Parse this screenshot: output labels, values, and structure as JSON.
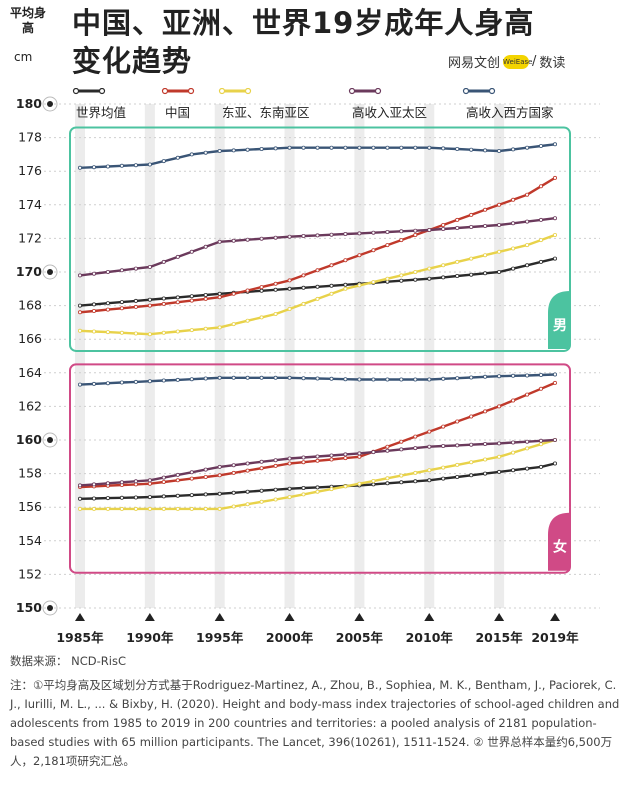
{
  "header": {
    "ylabel": "平均身高",
    "unit": "cm",
    "title_line1": "中国、亚洲、世界19岁成年人身高",
    "title_line2": "变化趋势",
    "brand_left": "网易文创",
    "brand_logo": "WeiEase",
    "brand_right": "数读"
  },
  "chart_data": {
    "type": "line",
    "ylim": [
      150,
      180
    ],
    "yticks": [
      150,
      152,
      154,
      156,
      158,
      160,
      162,
      164,
      166,
      168,
      170,
      172,
      174,
      176,
      178,
      180
    ],
    "x": [
      1985,
      1986,
      1987,
      1988,
      1989,
      1990,
      1991,
      1992,
      1993,
      1994,
      1995,
      1996,
      1997,
      1998,
      1999,
      2000,
      2001,
      2002,
      2003,
      2004,
      2005,
      2006,
      2007,
      2008,
      2009,
      2010,
      2011,
      2012,
      2013,
      2014,
      2015,
      2016,
      2017,
      2018,
      2019
    ],
    "xticks": [
      "1985年",
      "1990年",
      "1995年",
      "2000年",
      "2005年",
      "2010年",
      "2015年",
      "2019年"
    ],
    "panels": [
      {
        "label": "男",
        "series": [
          {
            "name": "世界均值",
            "color": "#2b2b2b",
            "values": [
              168.0,
              168.07,
              168.14,
              168.21,
              168.28,
              168.35,
              168.42,
              168.49,
              168.56,
              168.63,
              168.7,
              168.76,
              168.82,
              168.88,
              168.94,
              169.0,
              169.06,
              169.12,
              169.18,
              169.24,
              169.3,
              169.36,
              169.42,
              169.48,
              169.54,
              169.6,
              169.68,
              169.76,
              169.84,
              169.92,
              170.0,
              170.2,
              170.4,
              170.6,
              170.8
            ]
          },
          {
            "name": "中国",
            "color": "#c0392b",
            "values": [
              167.6,
              167.68,
              167.76,
              167.84,
              167.92,
              168.0,
              168.1,
              168.2,
              168.3,
              168.4,
              168.5,
              168.7,
              168.9,
              169.1,
              169.3,
              169.5,
              169.8,
              170.1,
              170.4,
              170.7,
              171.0,
              171.3,
              171.6,
              171.9,
              172.2,
              172.5,
              172.8,
              173.1,
              173.4,
              173.7,
              174.0,
              174.3,
              174.6,
              175.1,
              175.6
            ]
          },
          {
            "name": "东亚、东南亚区",
            "color": "#e8d24a",
            "values": [
              166.5,
              166.46,
              166.42,
              166.38,
              166.34,
              166.3,
              166.38,
              166.46,
              166.54,
              166.62,
              166.7,
              166.9,
              167.1,
              167.3,
              167.5,
              167.8,
              168.1,
              168.4,
              168.7,
              169.0,
              169.2,
              169.4,
              169.6,
              169.8,
              170.0,
              170.2,
              170.4,
              170.6,
              170.8,
              171.0,
              171.2,
              171.4,
              171.6,
              171.9,
              172.2
            ]
          },
          {
            "name": "高收入亚太区",
            "color": "#6b3a5c",
            "values": [
              169.8,
              169.9,
              170.0,
              170.1,
              170.2,
              170.3,
              170.6,
              170.9,
              171.2,
              171.5,
              171.8,
              171.86,
              171.92,
              171.98,
              172.04,
              172.1,
              172.14,
              172.18,
              172.22,
              172.26,
              172.3,
              172.34,
              172.38,
              172.42,
              172.46,
              172.5,
              172.56,
              172.62,
              172.68,
              172.74,
              172.8,
              172.9,
              173.0,
              173.1,
              173.2
            ]
          },
          {
            "name": "高收入西方国家",
            "color": "#3a5576",
            "values": [
              176.2,
              176.24,
              176.28,
              176.32,
              176.36,
              176.4,
              176.6,
              176.8,
              177.0,
              177.1,
              177.2,
              177.24,
              177.28,
              177.32,
              177.36,
              177.4,
              177.4,
              177.4,
              177.4,
              177.4,
              177.4,
              177.4,
              177.4,
              177.4,
              177.4,
              177.4,
              177.36,
              177.32,
              177.28,
              177.24,
              177.2,
              177.3,
              177.4,
              177.5,
              177.6
            ]
          }
        ]
      },
      {
        "label": "女",
        "series": [
          {
            "name": "世界均值",
            "color": "#2b2b2b",
            "values": [
              156.5,
              156.52,
              156.54,
              156.56,
              156.58,
              156.6,
              156.64,
              156.68,
              156.72,
              156.76,
              156.8,
              156.86,
              156.92,
              156.98,
              157.04,
              157.1,
              157.14,
              157.18,
              157.22,
              157.26,
              157.3,
              157.36,
              157.42,
              157.48,
              157.54,
              157.6,
              157.7,
              157.8,
              157.9,
              158.0,
              158.1,
              158.2,
              158.3,
              158.4,
              158.6
            ]
          },
          {
            "name": "中国",
            "color": "#c0392b",
            "values": [
              157.2,
              157.24,
              157.28,
              157.32,
              157.36,
              157.4,
              157.5,
              157.6,
              157.7,
              157.8,
              157.9,
              158.04,
              158.18,
              158.32,
              158.46,
              158.6,
              158.68,
              158.76,
              158.84,
              158.92,
              159.0,
              159.3,
              159.6,
              159.9,
              160.2,
              160.5,
              160.8,
              161.1,
              161.4,
              161.7,
              162.0,
              162.35,
              162.7,
              163.05,
              163.4
            ]
          },
          {
            "name": "东亚、东南亚区",
            "color": "#e8d24a",
            "values": [
              155.9,
              155.9,
              155.9,
              155.9,
              155.9,
              155.9,
              155.9,
              155.9,
              155.9,
              155.9,
              155.9,
              156.04,
              156.18,
              156.32,
              156.46,
              156.6,
              156.76,
              156.92,
              157.08,
              157.24,
              157.4,
              157.56,
              157.72,
              157.88,
              158.04,
              158.2,
              158.36,
              158.52,
              158.68,
              158.84,
              159.0,
              159.25,
              159.5,
              159.75,
              160.0
            ]
          },
          {
            "name": "高收入亚太区",
            "color": "#6b3a5c",
            "values": [
              157.3,
              157.36,
              157.42,
              157.48,
              157.54,
              157.6,
              157.76,
              157.92,
              158.08,
              158.24,
              158.4,
              158.5,
              158.6,
              158.7,
              158.8,
              158.9,
              158.96,
              159.02,
              159.08,
              159.14,
              159.2,
              159.28,
              159.36,
              159.44,
              159.52,
              159.6,
              159.64,
              159.68,
              159.72,
              159.76,
              159.8,
              159.85,
              159.9,
              159.95,
              160.0
            ]
          },
          {
            "name": "高收入西方国家",
            "color": "#3a5576",
            "values": [
              163.3,
              163.34,
              163.38,
              163.42,
              163.46,
              163.5,
              163.54,
              163.58,
              163.62,
              163.66,
              163.7,
              163.7,
              163.7,
              163.7,
              163.7,
              163.7,
              163.68,
              163.66,
              163.64,
              163.62,
              163.6,
              163.6,
              163.6,
              163.6,
              163.6,
              163.6,
              163.64,
              163.68,
              163.72,
              163.76,
              163.8,
              163.82,
              163.84,
              163.87,
              163.9
            ]
          }
        ]
      }
    ],
    "panel_colors": [
      "#4cc3a0",
      "#d04a86"
    ],
    "legend_position": "top"
  },
  "footer": {
    "source": "数据来源：  NCD-RisC",
    "note": "注：①平均身高及区域划分方式基于Rodriguez-Martinez, A., Zhou, B., Sophiea, M. K., Bentham, J., Paciorek, C. J., Iurilli, M. L., ... & Bixby, H. (2020). Height and body-mass index trajectories of school-aged children and adolescents from 1985 to 2019 in 200 countries and territories: a pooled analysis of 2181 population-based studies with 65 million participants. The Lancet, 396(10261), 1511-1524. ② 世界总样本量约6,500万人，2,181项研究汇总。"
  }
}
